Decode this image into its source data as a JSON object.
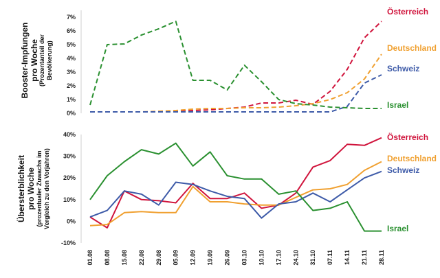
{
  "chart_data": [
    {
      "type": "line",
      "line_style": "dashed",
      "ylabel": [
        "Booster-Impfungen",
        "pro Woche"
      ],
      "ylabel_sub": [
        "(Prozentanteil der",
        "Bevölkerung)"
      ],
      "yticks": [
        "0%",
        "1%",
        "2%",
        "3%",
        "4%",
        "5%",
        "6%",
        "7%"
      ],
      "ylim": [
        0,
        7.5
      ],
      "categories": [
        "01.08",
        "08.08",
        "15.08",
        "22.08",
        "29.08",
        "05.09",
        "12.09",
        "19.09",
        "26.09",
        "03.10",
        "10.10",
        "17.10",
        "24.10",
        "31.10",
        "07.11",
        "14.11",
        "21.11",
        "28.11"
      ],
      "series": [
        {
          "name": "Österreich",
          "color": "#d0143c",
          "values": [
            0.1,
            0.1,
            0.1,
            0.1,
            0.1,
            0.15,
            0.2,
            0.25,
            0.35,
            0.45,
            0.75,
            0.75,
            0.95,
            0.65,
            1.6,
            3.2,
            5.5,
            6.7
          ]
        },
        {
          "name": "Deutschland",
          "color": "#f0a030",
          "values": [
            0.1,
            0.1,
            0.1,
            0.1,
            0.15,
            0.2,
            0.3,
            0.35,
            0.35,
            0.4,
            0.4,
            0.45,
            0.55,
            0.7,
            1.0,
            1.5,
            2.5,
            4.3
          ]
        },
        {
          "name": "Schweiz",
          "color": "#3d5aa8",
          "values": [
            0.1,
            0.1,
            0.1,
            0.1,
            0.1,
            0.1,
            0.1,
            0.1,
            0.1,
            0.1,
            0.1,
            0.1,
            0.1,
            0.1,
            0.1,
            0.5,
            2.2,
            2.8
          ]
        },
        {
          "name": "Israel",
          "color": "#2a9030",
          "values": [
            0.6,
            5.0,
            5.05,
            5.7,
            6.15,
            6.7,
            2.4,
            2.4,
            1.7,
            3.5,
            2.3,
            1.0,
            0.7,
            0.6,
            0.45,
            0.4,
            0.35,
            0.35
          ]
        }
      ]
    },
    {
      "type": "line",
      "line_style": "solid",
      "ylabel": [
        "Übersterblichkeit",
        "pro Woche"
      ],
      "ylabel_sub": [
        "(prozentualer Zuwachs im",
        "Vergleich zu den Vorjahren)"
      ],
      "yticks": [
        "-10%",
        "0%",
        "10%",
        "20%",
        "30%",
        "40%"
      ],
      "ylim": [
        -10,
        40
      ],
      "categories": [
        "01.08",
        "08.08",
        "15.08",
        "22.08",
        "29.08",
        "05.09",
        "12.09",
        "19.09",
        "26.09",
        "03.10",
        "10.10",
        "17.10",
        "24.10",
        "31.10",
        "07.11",
        "14.11",
        "21.11",
        "28.11"
      ],
      "series": [
        {
          "name": "Österreich",
          "color": "#d0143c",
          "values": [
            2,
            -3,
            14,
            10,
            9.5,
            8.5,
            17.5,
            10.5,
            10.5,
            13,
            6,
            7.5,
            13,
            25,
            28,
            35.5,
            35,
            38.5
          ]
        },
        {
          "name": "Deutschland",
          "color": "#f0a030",
          "values": [
            -2,
            -1.5,
            4,
            4.5,
            4,
            4,
            16,
            9,
            9,
            8,
            7.5,
            7.5,
            11,
            14.5,
            15,
            17,
            23.5,
            27.5
          ]
        },
        {
          "name": "Schweiz",
          "color": "#3d5aa8",
          "values": [
            2,
            5,
            14,
            12.5,
            7.5,
            18,
            17,
            14,
            11.5,
            10.5,
            1.5,
            8,
            9,
            13,
            9,
            14.5,
            20,
            23
          ]
        },
        {
          "name": "Israel",
          "color": "#2a9030",
          "values": [
            10,
            21,
            27.5,
            33,
            31,
            36,
            25.5,
            32,
            21,
            19.5,
            19.5,
            12.5,
            14,
            5,
            6,
            9,
            -4.5,
            -4.5
          ]
        }
      ]
    }
  ]
}
